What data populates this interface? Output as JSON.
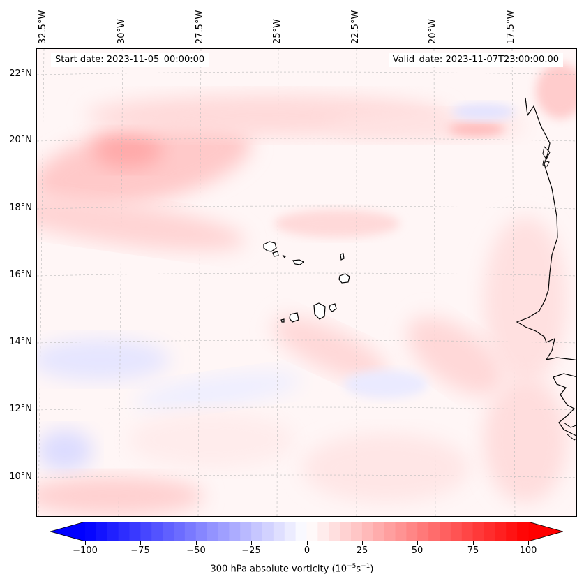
{
  "map": {
    "start_date": "Start date: 2023-11-05_00:00:00",
    "valid_date": "Valid_date: 2023-11-07T23:00:00.00",
    "lon_labels": [
      "32.5°W",
      "30°W",
      "27.5°W",
      "25°W",
      "22.5°W",
      "20°W",
      "17.5°W"
    ],
    "lat_labels": [
      "22°N",
      "20°N",
      "18°N",
      "16°N",
      "14°N",
      "12°N",
      "10°N"
    ],
    "extent": {
      "lon": [
        -33.0,
        -16.0
      ],
      "lat": [
        8.9,
        22.8
      ]
    },
    "field": "300 hPa absolute vorticity",
    "coastline_color": "#000000",
    "gridline_color": "#bbbbbb"
  },
  "colorbar": {
    "ticks": [
      "−100",
      "−75",
      "−50",
      "−25",
      "0",
      "25",
      "50",
      "75",
      "100"
    ],
    "tick_values": [
      -100,
      -75,
      -50,
      -25,
      0,
      25,
      50,
      75,
      100
    ],
    "range": [
      -100,
      100
    ],
    "label_main": "300 hPa absolute vorticity (10",
    "label_exp1": "−5",
    "label_mid": "s",
    "label_exp2": "−1",
    "label_end": ")",
    "cmap": "bwr",
    "colors": {
      "min": "#0000ff",
      "mid": "#ffffff",
      "max": "#ff0000"
    }
  }
}
